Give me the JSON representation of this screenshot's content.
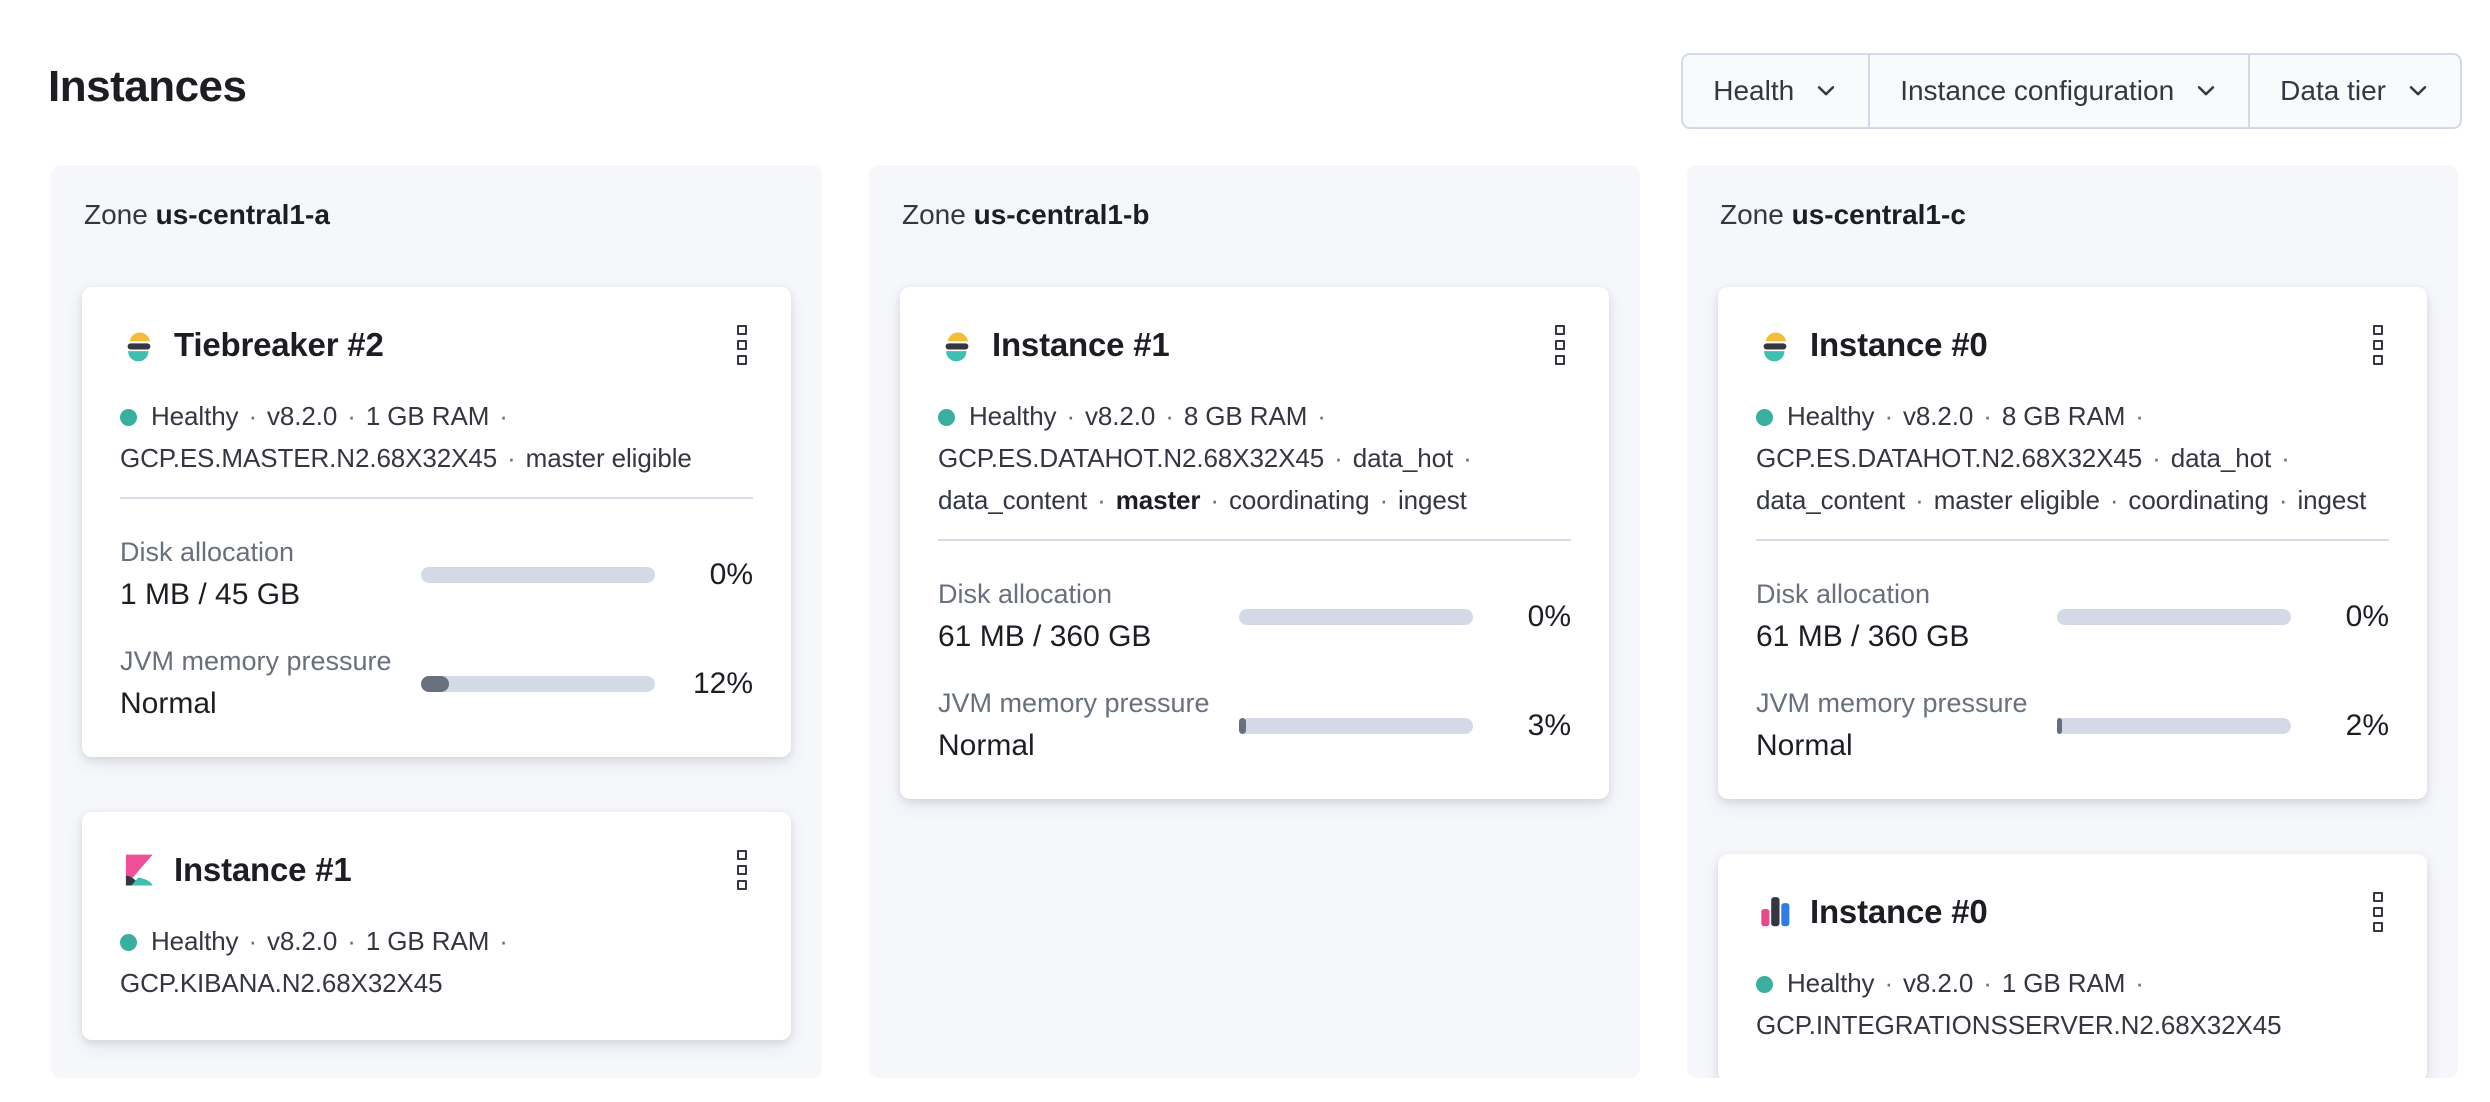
{
  "header": {
    "title": "Instances"
  },
  "filters": [
    {
      "label": "Health"
    },
    {
      "label": "Instance configuration"
    },
    {
      "label": "Data tier"
    }
  ],
  "colors": {
    "health_dot": "#3aae9f",
    "bar_track": "#d4dae5",
    "bar_fill": "#69707d",
    "panel_background": "#f6f7fb",
    "es_logo_yellow": "#f4bd38",
    "es_logo_dark": "#343741",
    "es_logo_teal": "#40beb0",
    "kibana_pink": "#f04e98",
    "kibana_dark": "#343741",
    "kibana_teal": "#40beb0",
    "integrations_pink": "#e8488b",
    "integrations_dark": "#343741",
    "integrations_blue": "#2f7de9"
  },
  "zones": [
    {
      "label": "Zone",
      "name": "us-central1-a",
      "cards": [
        {
          "icon": "elasticsearch-logo",
          "title": "Tiebreaker #2",
          "lines": [
            {
              "health_dot": true,
              "trailing_dot": true,
              "segments": [
                {
                  "t": "Healthy"
                },
                {
                  "t": "v8.2.0"
                },
                {
                  "t": "1 GB RAM"
                }
              ]
            },
            {
              "health_dot": false,
              "trailing_dot": false,
              "segments": [
                {
                  "t": "GCP.ES.MASTER.N2.68X32X45"
                },
                {
                  "t": "master eligible"
                }
              ]
            }
          ],
          "metrics": [
            {
              "label": "Disk allocation",
              "value": "1 MB / 45 GB",
              "percent": "0%",
              "fill_pct": 0
            },
            {
              "label": "JVM memory pressure",
              "value": "Normal",
              "percent": "12%",
              "fill_pct": 12
            }
          ]
        },
        {
          "icon": "kibana-logo",
          "title": "Instance #1",
          "lines": [
            {
              "health_dot": true,
              "trailing_dot": true,
              "segments": [
                {
                  "t": "Healthy"
                },
                {
                  "t": "v8.2.0"
                },
                {
                  "t": "1 GB RAM"
                }
              ]
            },
            {
              "health_dot": false,
              "trailing_dot": false,
              "segments": [
                {
                  "t": "GCP.KIBANA.N2.68X32X45"
                }
              ]
            }
          ],
          "metrics": []
        }
      ]
    },
    {
      "label": "Zone",
      "name": "us-central1-b",
      "cards": [
        {
          "icon": "elasticsearch-logo",
          "title": "Instance #1",
          "lines": [
            {
              "health_dot": true,
              "trailing_dot": true,
              "segments": [
                {
                  "t": "Healthy"
                },
                {
                  "t": "v8.2.0"
                },
                {
                  "t": "8 GB RAM"
                }
              ]
            },
            {
              "health_dot": false,
              "trailing_dot": true,
              "segments": [
                {
                  "t": "GCP.ES.DATAHOT.N2.68X32X45"
                },
                {
                  "t": "data_hot"
                }
              ]
            },
            {
              "health_dot": false,
              "trailing_dot": false,
              "segments": [
                {
                  "t": "data_content"
                },
                {
                  "t": "master",
                  "bold": true
                },
                {
                  "t": "coordinating"
                },
                {
                  "t": "ingest"
                }
              ]
            }
          ],
          "metrics": [
            {
              "label": "Disk allocation",
              "value": "61 MB / 360 GB",
              "percent": "0%",
              "fill_pct": 0
            },
            {
              "label": "JVM memory pressure",
              "value": "Normal",
              "percent": "3%",
              "fill_pct": 3
            }
          ]
        }
      ]
    },
    {
      "label": "Zone",
      "name": "us-central1-c",
      "cards": [
        {
          "icon": "elasticsearch-logo",
          "title": "Instance #0",
          "lines": [
            {
              "health_dot": true,
              "trailing_dot": true,
              "segments": [
                {
                  "t": "Healthy"
                },
                {
                  "t": "v8.2.0"
                },
                {
                  "t": "8 GB RAM"
                }
              ]
            },
            {
              "health_dot": false,
              "trailing_dot": true,
              "segments": [
                {
                  "t": "GCP.ES.DATAHOT.N2.68X32X45"
                },
                {
                  "t": "data_hot"
                }
              ]
            },
            {
              "health_dot": false,
              "trailing_dot": false,
              "segments": [
                {
                  "t": "data_content"
                },
                {
                  "t": "master eligible"
                },
                {
                  "t": "coordinating"
                },
                {
                  "t": "ingest"
                }
              ]
            }
          ],
          "metrics": [
            {
              "label": "Disk allocation",
              "value": "61 MB / 360 GB",
              "percent": "0%",
              "fill_pct": 0
            },
            {
              "label": "JVM memory pressure",
              "value": "Normal",
              "percent": "2%",
              "fill_pct": 2
            }
          ]
        },
        {
          "icon": "integrations-server-logo",
          "title": "Instance #0",
          "lines": [
            {
              "health_dot": true,
              "trailing_dot": true,
              "segments": [
                {
                  "t": "Healthy"
                },
                {
                  "t": "v8.2.0"
                },
                {
                  "t": "1 GB RAM"
                }
              ]
            },
            {
              "health_dot": false,
              "trailing_dot": false,
              "segments": [
                {
                  "t": "GCP.INTEGRATIONSSERVER.N2.68X32X45"
                }
              ]
            }
          ],
          "metrics": []
        }
      ]
    }
  ]
}
